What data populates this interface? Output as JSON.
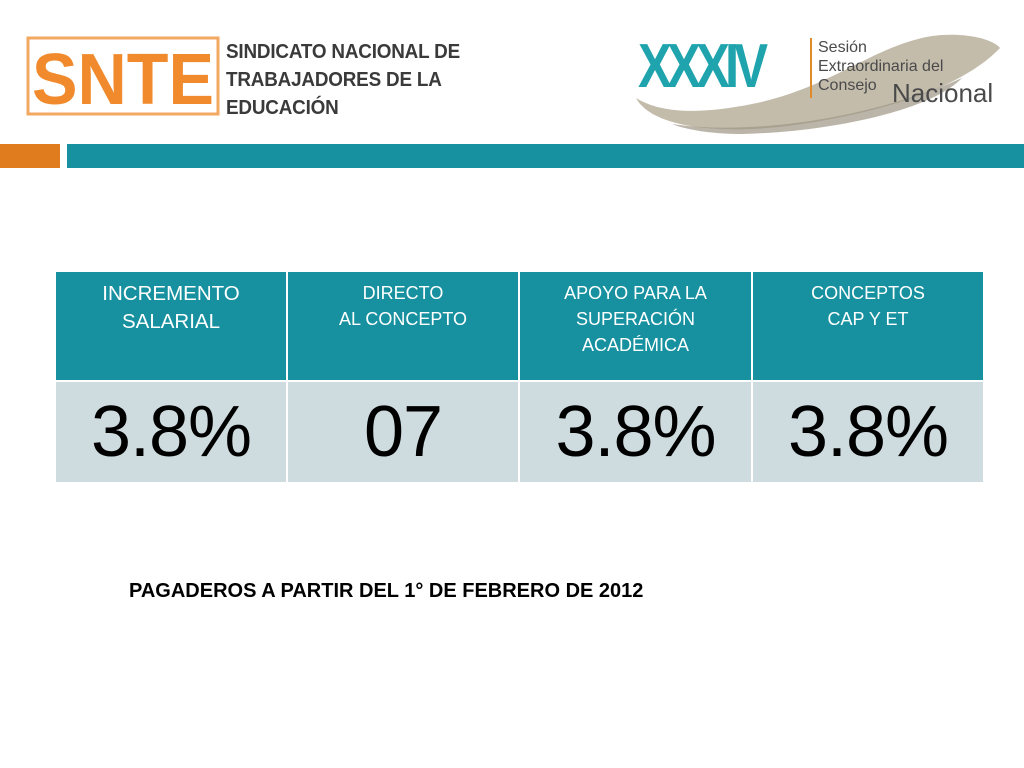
{
  "header": {
    "snte_logo": {
      "mark_text": "SNTE",
      "name_lines": [
        "SINDICATO NACIONAL DE",
        "TRABAJADORES DE LA",
        "EDUCACIÓN"
      ]
    },
    "session_logo": {
      "numeral": "XXXIV",
      "line1": "Sesión",
      "line2": "Extraordinaria del",
      "line3": "Consejo",
      "line4": "Nacional"
    }
  },
  "colors": {
    "teal": "#1791a0",
    "orange": "#e07b1e",
    "cell_bg": "#cfdcdf",
    "logo_teal": "#1fa3ad"
  },
  "table": {
    "headers": [
      [
        "INCREMENTO",
        "SALARIAL"
      ],
      [
        "DIRECTO",
        "AL CONCEPTO"
      ],
      [
        "APOYO PARA LA",
        "SUPERACIÓN",
        "ACADÉMICA"
      ],
      [
        "CONCEPTOS",
        "CAP Y ET"
      ]
    ],
    "values": [
      "3.8%",
      "07",
      "3.8%",
      "3.8%"
    ]
  },
  "footnote": "PAGADEROS A PARTIR DEL 1° DE FEBRERO DE 2012"
}
